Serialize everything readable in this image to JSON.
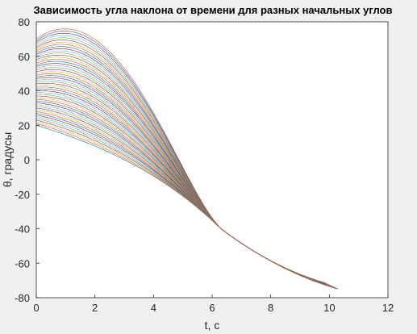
{
  "chart_data": {
    "type": "line",
    "title": "Зависимость угла наклона от времени для разных начальных углов",
    "xlabel": "t, c",
    "ylabel": "θ, градусы",
    "xlim": [
      0,
      12
    ],
    "ylim": [
      -80,
      80
    ],
    "x_ticks": [
      "0",
      "2",
      "4",
      "6",
      "8",
      "10",
      "12"
    ],
    "y_ticks": [
      "80",
      "60",
      "40",
      "20",
      "0",
      "-20",
      "-40",
      "-60",
      "-80"
    ],
    "grid": false,
    "legend": "none",
    "series_description": "family of curves for initial angles from 20 to 70 degrees",
    "initial_angles": {
      "start": 20,
      "end": 70,
      "step": 1
    },
    "crossing_point": {
      "t": 6.3,
      "theta": -40
    },
    "end_t_range": [
      9.8,
      10.3
    ],
    "end_theta_range": [
      -71,
      -75
    ],
    "series_colors": [
      "#0072bd",
      "#d95319",
      "#edb120",
      "#7e2f8e",
      "#77ac30",
      "#4dbeee",
      "#a2142f"
    ]
  }
}
